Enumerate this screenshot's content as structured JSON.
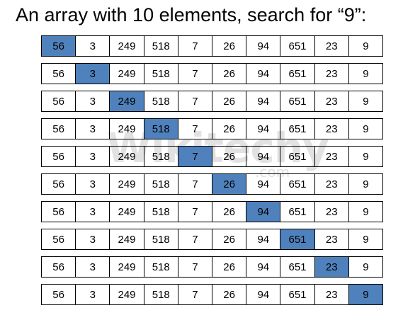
{
  "title": "An array with 10 elements, search for “9”:",
  "watermark": {
    "text": "Wikitechy",
    "suffix": ".com"
  },
  "highlight_color": "#4f81bd",
  "array": [
    "56",
    "3",
    "249",
    "518",
    "7",
    "26",
    "94",
    "651",
    "23",
    "9"
  ],
  "steps": [
    {
      "highlight_index": 0
    },
    {
      "highlight_index": 1
    },
    {
      "highlight_index": 2
    },
    {
      "highlight_index": 3
    },
    {
      "highlight_index": 4
    },
    {
      "highlight_index": 5
    },
    {
      "highlight_index": 6
    },
    {
      "highlight_index": 7
    },
    {
      "highlight_index": 8
    },
    {
      "highlight_index": 9
    }
  ]
}
